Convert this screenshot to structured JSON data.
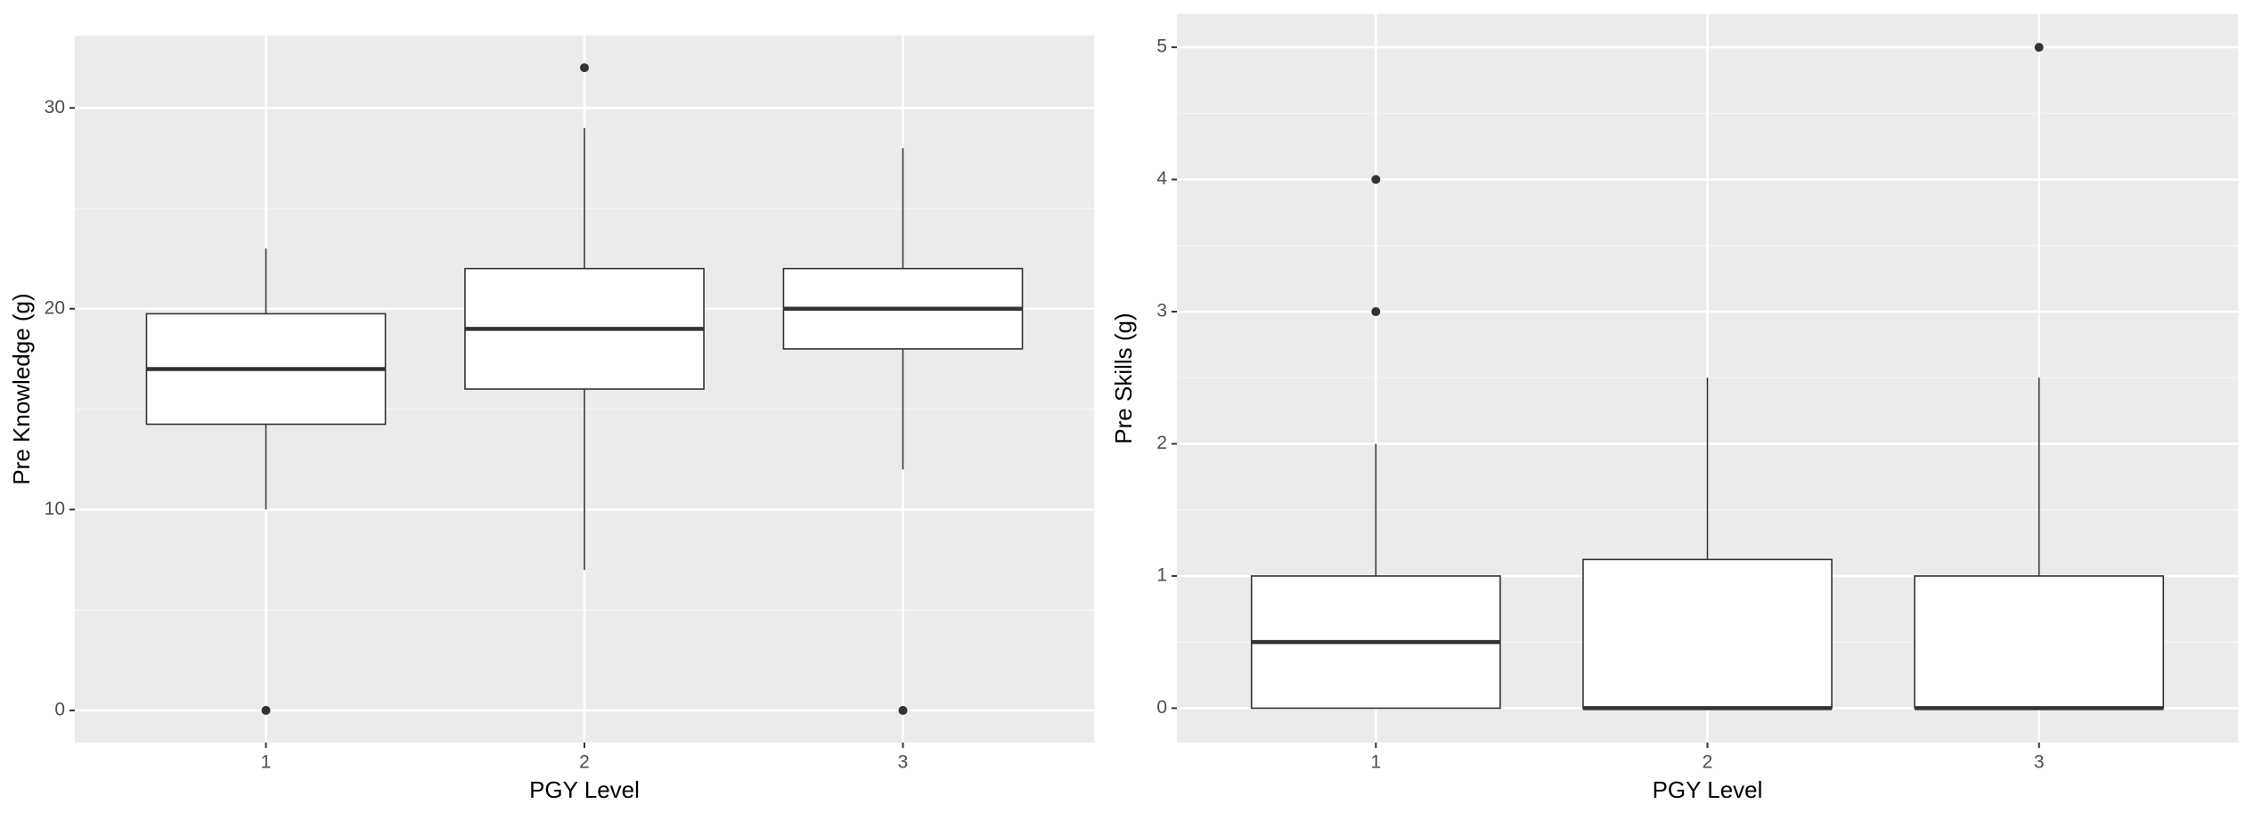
{
  "chart_data": [
    {
      "type": "box",
      "x_label": "PGY Level",
      "y_label": "Pre Knowledge (g)",
      "categories": [
        "1",
        "2",
        "3"
      ],
      "boxes": [
        {
          "min": 10,
          "q1": 14.25,
          "median": 17,
          "q3": 19.75,
          "max": 23,
          "outliers": [
            0
          ]
        },
        {
          "min": 7,
          "q1": 16,
          "median": 19,
          "q3": 22,
          "max": 29,
          "outliers": [
            32
          ]
        },
        {
          "min": 12,
          "q1": 18,
          "median": 20,
          "q3": 22,
          "max": 28,
          "outliers": [
            0
          ]
        }
      ],
      "ylim": [
        -1.6,
        33.6
      ],
      "yticks": [
        0,
        10,
        20,
        30
      ],
      "grid": true
    },
    {
      "type": "box",
      "x_label": "PGY Level",
      "y_label": "Pre Skills (g)",
      "categories": [
        "1",
        "2",
        "3"
      ],
      "boxes": [
        {
          "min": 0,
          "q1": 0,
          "median": 0.5,
          "q3": 1,
          "max": 2,
          "outliers": [
            3,
            4
          ]
        },
        {
          "min": 0,
          "q1": 0,
          "median": 0,
          "q3": 1.125,
          "max": 2.5,
          "outliers": []
        },
        {
          "min": 0,
          "q1": 0,
          "median": 0,
          "q3": 1,
          "max": 2.5,
          "outliers": [
            5
          ]
        }
      ],
      "ylim": [
        -0.26,
        5.25
      ],
      "yticks": [
        0,
        1,
        2,
        3,
        4,
        5
      ],
      "grid": true
    }
  ]
}
